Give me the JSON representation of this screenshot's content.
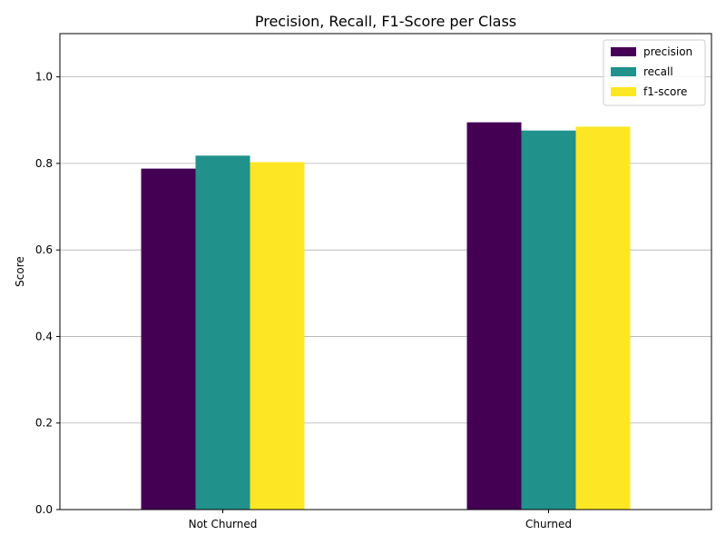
{
  "chart_data": {
    "type": "bar",
    "title": "Precision, Recall, F1-Score per Class",
    "xlabel": "",
    "ylabel": "Score",
    "ylim": [
      0,
      1.1
    ],
    "yticks": [
      "0.0",
      "0.2",
      "0.4",
      "0.6",
      "0.8",
      "1.0"
    ],
    "ytick_values": [
      0.0,
      0.2,
      0.4,
      0.6,
      0.8,
      1.0
    ],
    "categories": [
      "Not Churned",
      "Churned"
    ],
    "grid": "y",
    "legend_position": "top-right",
    "series": [
      {
        "name": "precision",
        "color": "#440154",
        "values": [
          0.788,
          0.895
        ]
      },
      {
        "name": "recall",
        "color": "#21918c",
        "values": [
          0.818,
          0.876
        ]
      },
      {
        "name": "f1-score",
        "color": "#fde725",
        "values": [
          0.803,
          0.885
        ]
      }
    ]
  }
}
